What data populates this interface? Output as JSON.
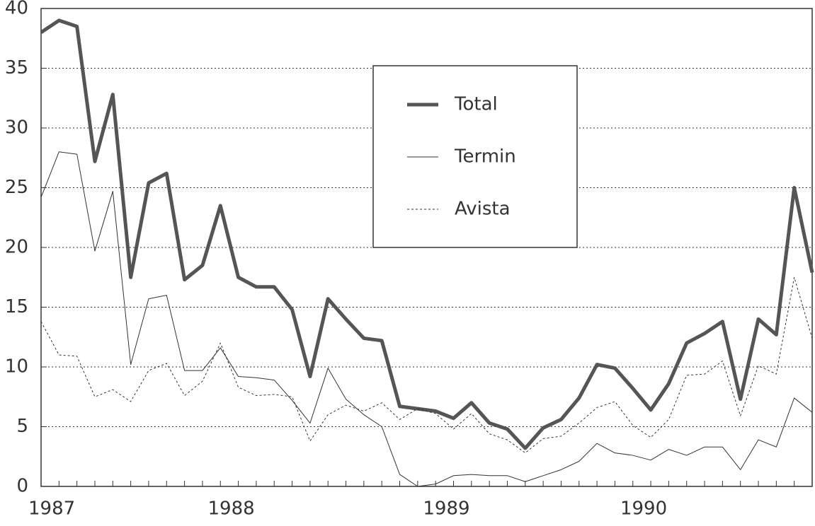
{
  "chart_data": {
    "type": "line",
    "categories": [
      "1987",
      null,
      null,
      null,
      null,
      null,
      null,
      null,
      null,
      null,
      null,
      "1988",
      null,
      null,
      null,
      null,
      null,
      null,
      null,
      null,
      null,
      null,
      null,
      "1989",
      null,
      null,
      null,
      null,
      null,
      null,
      null,
      null,
      null,
      null,
      "1990",
      null,
      null,
      null,
      null,
      null,
      null,
      null,
      null,
      null
    ],
    "series": [
      {
        "name": "Total",
        "color": "#555555",
        "linewidth": 5,
        "dash": "none",
        "values": [
          38,
          39,
          38.5,
          27.2,
          32.8,
          17.5,
          25.4,
          26.2,
          17.3,
          18.5,
          23.5,
          17.5,
          16.7,
          16.7,
          14.8,
          9.2,
          15.7,
          14,
          12.4,
          12.2,
          6.7,
          6.5,
          6.3,
          5.7,
          7,
          5.3,
          4.8,
          3.2,
          4.9,
          5.6,
          7.4,
          10.2,
          9.9,
          8.2,
          6.4,
          8.6,
          12,
          12.8,
          13.8,
          7.3,
          14,
          12.7,
          25,
          17.9
        ]
      },
      {
        "name": "Termin",
        "color": "#333333",
        "linewidth": 1,
        "dash": "none",
        "values": [
          24.2,
          28,
          27.8,
          19.7,
          24.7,
          10.2,
          15.7,
          16,
          9.7,
          9.7,
          11.6,
          9.2,
          9.1,
          8.9,
          7.2,
          5.3,
          9.9,
          7.3,
          6,
          5,
          1,
          0,
          0.2,
          0.9,
          1,
          0.9,
          0.9,
          0.4,
          0.9,
          1.4,
          2.1,
          3.6,
          2.8,
          2.6,
          2.2,
          3.1,
          2.6,
          3.3,
          3.3,
          1.4,
          3.9,
          3.3,
          7.4,
          6.2
        ]
      },
      {
        "name": "Avista",
        "color": "#333333",
        "linewidth": 1,
        "dash": "3 3",
        "values": [
          13.8,
          11,
          10.9,
          7.5,
          8.1,
          7.1,
          9.7,
          10.3,
          7.6,
          8.8,
          12,
          8.3,
          7.6,
          7.7,
          7.5,
          3.8,
          6,
          6.8,
          6.3,
          7,
          5.6,
          6.5,
          6.1,
          4.8,
          6.1,
          4.4,
          3.9,
          2.8,
          4,
          4.2,
          5.3,
          6.6,
          7.1,
          5.1,
          4.1,
          5.6,
          9.3,
          9.4,
          10.5,
          5.9,
          10.1,
          9.4,
          17.5,
          12.4
        ]
      }
    ],
    "ylim": [
      0,
      40
    ],
    "yticks": [
      0,
      5,
      10,
      15,
      20,
      25,
      30,
      35,
      40
    ],
    "grid": true,
    "legend": "upper center"
  }
}
